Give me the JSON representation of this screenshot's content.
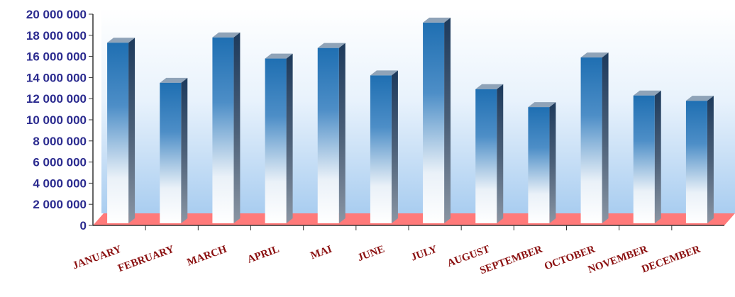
{
  "chart_data": {
    "type": "bar",
    "categories": [
      "JANUARY",
      "FEBRUARY",
      "MARCH",
      "APRIL",
      "MAI",
      "JUNE",
      "JULY",
      "AUGUST",
      "SEPTEMBER",
      "OCTOBER",
      "NOVEMBER",
      "DECEMBER"
    ],
    "values": [
      17300000,
      13500000,
      17800000,
      15800000,
      16800000,
      14200000,
      19200000,
      12900000,
      11200000,
      15900000,
      12300000,
      11800000
    ],
    "ylim": [
      0,
      20000000
    ],
    "yticks": [
      "0",
      "2 000 000",
      "4 000 000",
      "6 000 000",
      "8 000 000",
      "10 000 000",
      "12 000 000",
      "14 000 000",
      "16 000 000",
      "18 000 000",
      "20 000 000"
    ],
    "grid": false,
    "legend": "none",
    "style": "3d-cylinder-gradient",
    "colors": {
      "bar_top": "#1f6fb2",
      "bar_bottom": "#ffffff",
      "bar_side": "#1d3a5c",
      "floor": "#ff7a7a",
      "wall_top": "#ffffff",
      "wall_bottom": "#a9cdf0",
      "ytick": "#2b2b8f",
      "xtick": "#8b1010",
      "axis": "#333333"
    }
  }
}
